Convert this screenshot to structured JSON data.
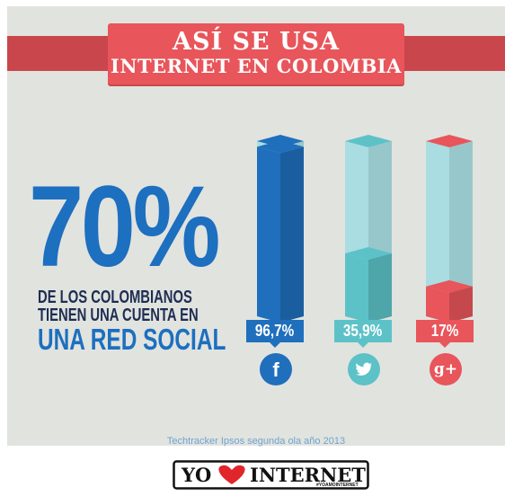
{
  "header": {
    "title_line1": "ASÍ SE USA",
    "title_line2": "INTERNET EN COLOMBIA"
  },
  "stat": {
    "percent": "70%",
    "line1": "DE LOS COLOMBIANOS",
    "line2": "TIENEN UNA CUENTA EN",
    "line3": "UNA RED SOCIAL"
  },
  "chart_data": {
    "type": "bar",
    "categories": [
      "facebook-icon",
      "twitter-icon",
      "google-plus-icon"
    ],
    "values": [
      96.7,
      35.9,
      17
    ],
    "value_labels": [
      "96,7%",
      "35,9%",
      "17%"
    ],
    "ylim": [
      0,
      100
    ],
    "colors": {
      "facebook": "#1f6fbc",
      "twitter": "#5cc2c8",
      "google_plus": "#e8555a",
      "track": "#a9dde2"
    }
  },
  "icons": {
    "facebook_glyph": "f",
    "google_plus_glyph": "g+"
  },
  "source": "Techtracker Ipsos segunda ola año 2013",
  "logo": {
    "text_left": "YO",
    "text_right": "INTERNET",
    "hashtag": "#YOAMOINTERNET"
  }
}
